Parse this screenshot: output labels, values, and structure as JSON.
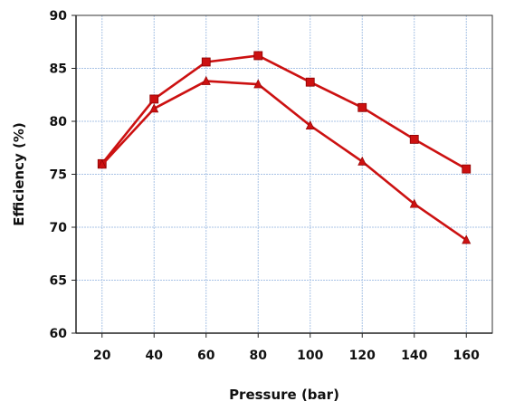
{
  "chart_data": {
    "type": "line",
    "title": "",
    "xlabel": "Pressure (bar)",
    "ylabel": "Efficiency (%)",
    "x": [
      20,
      40,
      60,
      80,
      100,
      120,
      140,
      160
    ],
    "xlim": [
      10,
      170
    ],
    "ylim": [
      60,
      90
    ],
    "yticks": [
      60,
      65,
      70,
      75,
      80,
      85,
      90
    ],
    "xticks": [
      20,
      40,
      60,
      80,
      100,
      120,
      140,
      160
    ],
    "grid": true,
    "series": [
      {
        "marker": "square",
        "color": "#cc1111",
        "values": [
          76.0,
          82.1,
          85.6,
          86.2,
          83.7,
          81.3,
          78.3,
          75.5
        ]
      },
      {
        "marker": "triangle",
        "color": "#cc1111",
        "values": [
          75.9,
          81.2,
          83.8,
          83.5,
          79.6,
          76.2,
          72.2,
          68.8
        ]
      }
    ],
    "colors": {
      "grid": "#a9c3e6",
      "axis": "#222222",
      "frame": "#333333"
    }
  }
}
